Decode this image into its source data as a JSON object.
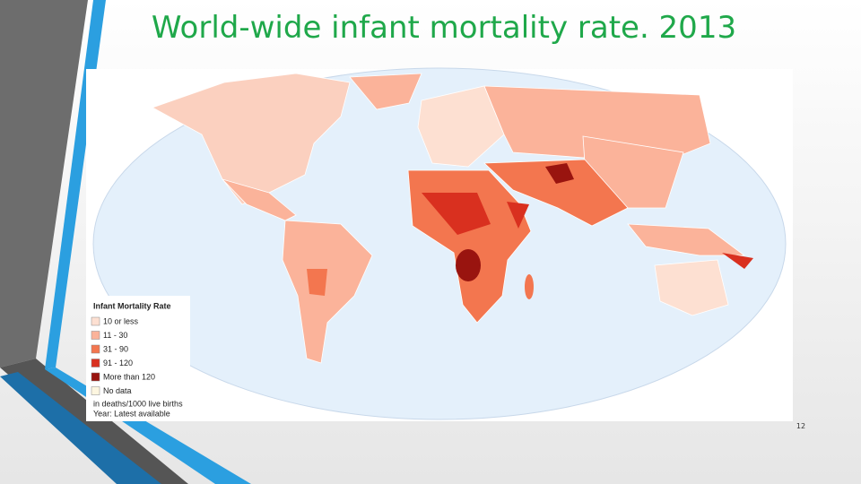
{
  "title": "World-wide infant mortality rate. 2013",
  "legend": {
    "title": "Infant Mortality Rate",
    "items": [
      {
        "label": "10 or less",
        "color": "#fde0d2"
      },
      {
        "label": "11 - 30",
        "color": "#fbb39a"
      },
      {
        "label": "31 - 90",
        "color": "#f3764f"
      },
      {
        "label": "91 - 120",
        "color": "#d9301f"
      },
      {
        "label": "More than 120",
        "color": "#99140f"
      },
      {
        "label": "No data",
        "color": "#fdf6e0"
      }
    ],
    "notes": [
      "in deaths/1000 live births",
      "Year: Latest available"
    ]
  },
  "page_number": "12"
}
